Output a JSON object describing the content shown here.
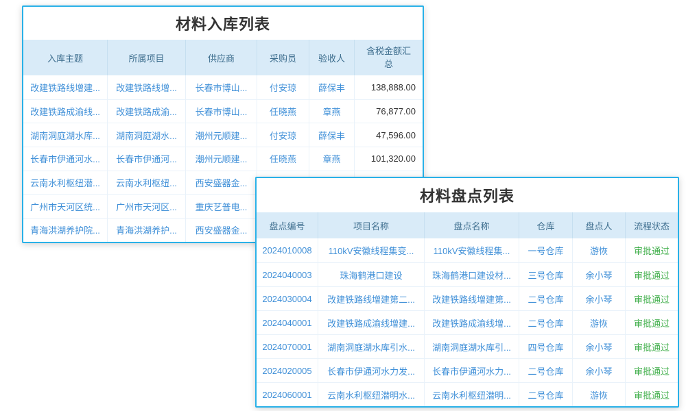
{
  "colors": {
    "panel_border": "#29b1e8",
    "header_background": "#d9ebf8",
    "header_text": "#3e6e8e",
    "cell_link_text": "#4090d8",
    "amount_text": "#333333",
    "status_approved_green": "#3fae49"
  },
  "inbound_table": {
    "title": "材料入库列表",
    "columns": [
      "入库主题",
      "所属项目",
      "供应商",
      "采购员",
      "验收人",
      "含税金额汇总"
    ],
    "rows": [
      [
        "改建铁路线增建...",
        "改建铁路线增...",
        "长春市博山...",
        "付安琼",
        "薛保丰",
        "138,888.00"
      ],
      [
        "改建铁路成渝线...",
        "改建铁路成渝...",
        "长春市博山...",
        "任晓燕",
        "章燕",
        "76,877.00"
      ],
      [
        "湖南洞庭湖水库...",
        "湖南洞庭湖水...",
        "潮州元顺建...",
        "付安琼",
        "薛保丰",
        "47,596.00"
      ],
      [
        "长春市伊通河水...",
        "长春市伊通河...",
        "潮州元顺建...",
        "任晓燕",
        "章燕",
        "101,320.00"
      ],
      [
        "云南水利枢纽潜...",
        "云南水利枢纽...",
        "西安盛器金...",
        "",
        "",
        ""
      ],
      [
        "广州市天河区统...",
        "广州市天河区...",
        "重庆艺普电...",
        "",
        "",
        ""
      ],
      [
        "青海洪湖养护院...",
        "青海洪湖养护...",
        "西安盛器金...",
        "",
        "",
        ""
      ]
    ]
  },
  "inventory_table": {
    "title": "材料盘点列表",
    "columns": [
      "盘点编号",
      "项目名称",
      "盘点名称",
      "仓库",
      "盘点人",
      "流程状态"
    ],
    "rows": [
      [
        "2024010008",
        "110kV安徽线程集变...",
        "110kV安徽线程集...",
        "一号仓库",
        "游恢",
        "审批通过"
      ],
      [
        "2024040003",
        "珠海鹤港口建设",
        "珠海鹤港口建设材...",
        "三号仓库",
        "余小琴",
        "审批通过"
      ],
      [
        "2024030004",
        "改建铁路线增建第二...",
        "改建铁路线增建第...",
        "二号仓库",
        "余小琴",
        "审批通过"
      ],
      [
        "2024040001",
        "改建铁路成渝线增建...",
        "改建铁路成渝线增...",
        "二号仓库",
        "游恢",
        "审批通过"
      ],
      [
        "2024070001",
        "湖南洞庭湖水库引水...",
        "湖南洞庭湖水库引...",
        "四号仓库",
        "余小琴",
        "审批通过"
      ],
      [
        "2024020005",
        "长春市伊通河水力发...",
        "长春市伊通河水力...",
        "二号仓库",
        "余小琴",
        "审批通过"
      ],
      [
        "2024060001",
        "云南水利枢纽潜明水...",
        "云南水利枢纽潜明...",
        "二号仓库",
        "游恢",
        "审批通过"
      ]
    ]
  }
}
